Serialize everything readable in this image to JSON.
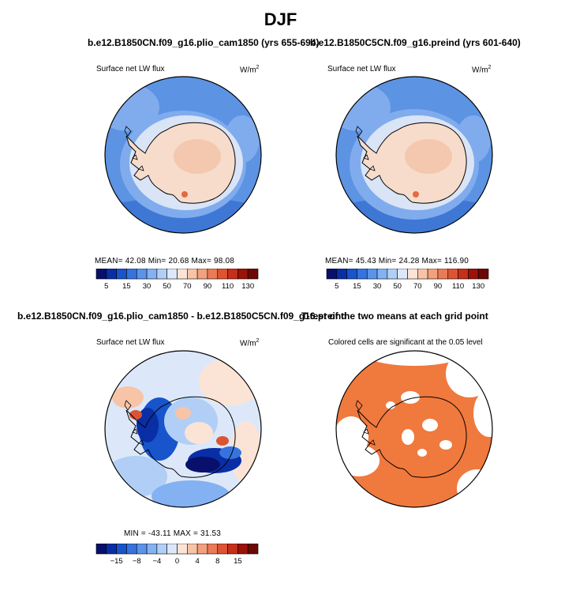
{
  "figure": {
    "title": "DJF"
  },
  "panels": [
    {
      "title": "b.e12.B1850CN.f09_g16.plio_cam1850 (yrs 655-694)",
      "left_label": "Surface net LW flux",
      "units": "W/m",
      "units_sup": "2",
      "stats": "MEAN=  42.08  Min=  20.68  Max=  98.08",
      "field": "absolute"
    },
    {
      "title": "b.e12.B1850C5CN.f09_g16.preind (yrs 601-640)",
      "left_label": "Surface net LW flux",
      "units": "W/m",
      "units_sup": "2",
      "stats": "MEAN=  45.43  Min=  24.28  Max= 116.90",
      "field": "absolute2"
    },
    {
      "title": "b.e12.B1850CN.f09_g16.plio_cam1850 - b.e12.B1850C5CN.f09_g16.preind",
      "left_label": "Surface net LW flux",
      "units": "W/m",
      "units_sup": "2",
      "stats": "MIN = -43.11  MAX =  31.53",
      "field": "difference"
    },
    {
      "title": "T-test of the two means at each grid point",
      "subtitle": "Colored cells are significant at the 0.05 level",
      "field": "significance"
    }
  ],
  "chart_data": [
    {
      "type": "heatmap",
      "title": "b.e12.B1850CN.f09_g16.plio_cam1850 (yrs 655-694)",
      "variable": "Surface net LW flux",
      "units": "W/m2",
      "projection": "south polar stereographic",
      "stats": {
        "mean": 42.08,
        "min": 20.68,
        "max": 98.08
      },
      "colorbar_levels": [
        5,
        10,
        15,
        20,
        30,
        40,
        50,
        60,
        70,
        80,
        90,
        100,
        110,
        120,
        130
      ],
      "colorbar_tick_labels": [
        "5",
        "15",
        "30",
        "50",
        "70",
        "90",
        "110",
        "130"
      ]
    },
    {
      "type": "heatmap",
      "title": "b.e12.B1850C5CN.f09_g16.preind (yrs 601-640)",
      "variable": "Surface net LW flux",
      "units": "W/m2",
      "projection": "south polar stereographic",
      "stats": {
        "mean": 45.43,
        "min": 24.28,
        "max": 116.9
      },
      "colorbar_levels": [
        5,
        10,
        15,
        20,
        30,
        40,
        50,
        60,
        70,
        80,
        90,
        100,
        110,
        120,
        130
      ],
      "colorbar_tick_labels": [
        "5",
        "15",
        "30",
        "50",
        "70",
        "90",
        "110",
        "130"
      ]
    },
    {
      "type": "heatmap",
      "title": "b.e12.B1850CN.f09_g16.plio_cam1850 - b.e12.B1850C5CN.f09_g16.preind",
      "variable": "Surface net LW flux",
      "units": "W/m2",
      "projection": "south polar stereographic",
      "stats": {
        "min": -43.11,
        "max": 31.53
      },
      "colorbar_levels": [
        -20,
        -15,
        -10,
        -8,
        -6,
        -4,
        -2,
        0,
        2,
        4,
        6,
        8,
        10,
        15,
        20
      ],
      "colorbar_tick_labels": [
        "-15",
        "-8",
        "-4",
        "0",
        "4",
        "8",
        "15"
      ]
    },
    {
      "type": "heatmap",
      "title": "T-test of the two means at each grid point",
      "subtitle": "Colored cells are significant at the 0.05 level",
      "projection": "south polar stereographic",
      "significance_level": 0.05
    }
  ],
  "colors": {
    "absolute_palette": [
      "#08106b",
      "#0a2ea6",
      "#1854cc",
      "#3673df",
      "#5b93ea",
      "#83b1f2",
      "#b1cff6",
      "#dce8f9",
      "#fbe4d6",
      "#f7c4a8",
      "#f2a07e",
      "#ea7b56",
      "#dd5433",
      "#c62f1a",
      "#9a1208",
      "#6d0804"
    ],
    "diff_palette": [
      "#08106b",
      "#0a2ea6",
      "#1854cc",
      "#3673df",
      "#5b93ea",
      "#83b1f2",
      "#b1cff6",
      "#dce8f9",
      "#fbe4d6",
      "#f7c4a8",
      "#f2a07e",
      "#ea7b56",
      "#dd5433",
      "#c62f1a",
      "#9a1208",
      "#6d0804"
    ],
    "ocean_mid": "#5c93e3",
    "ocean_light": "#80acee",
    "ocean_dark": "#3f78d4",
    "ice_edge": "#d9e4f6",
    "land": "#f7dccb",
    "land_warm": "#f1bfa2",
    "significant": "#f0793e"
  }
}
